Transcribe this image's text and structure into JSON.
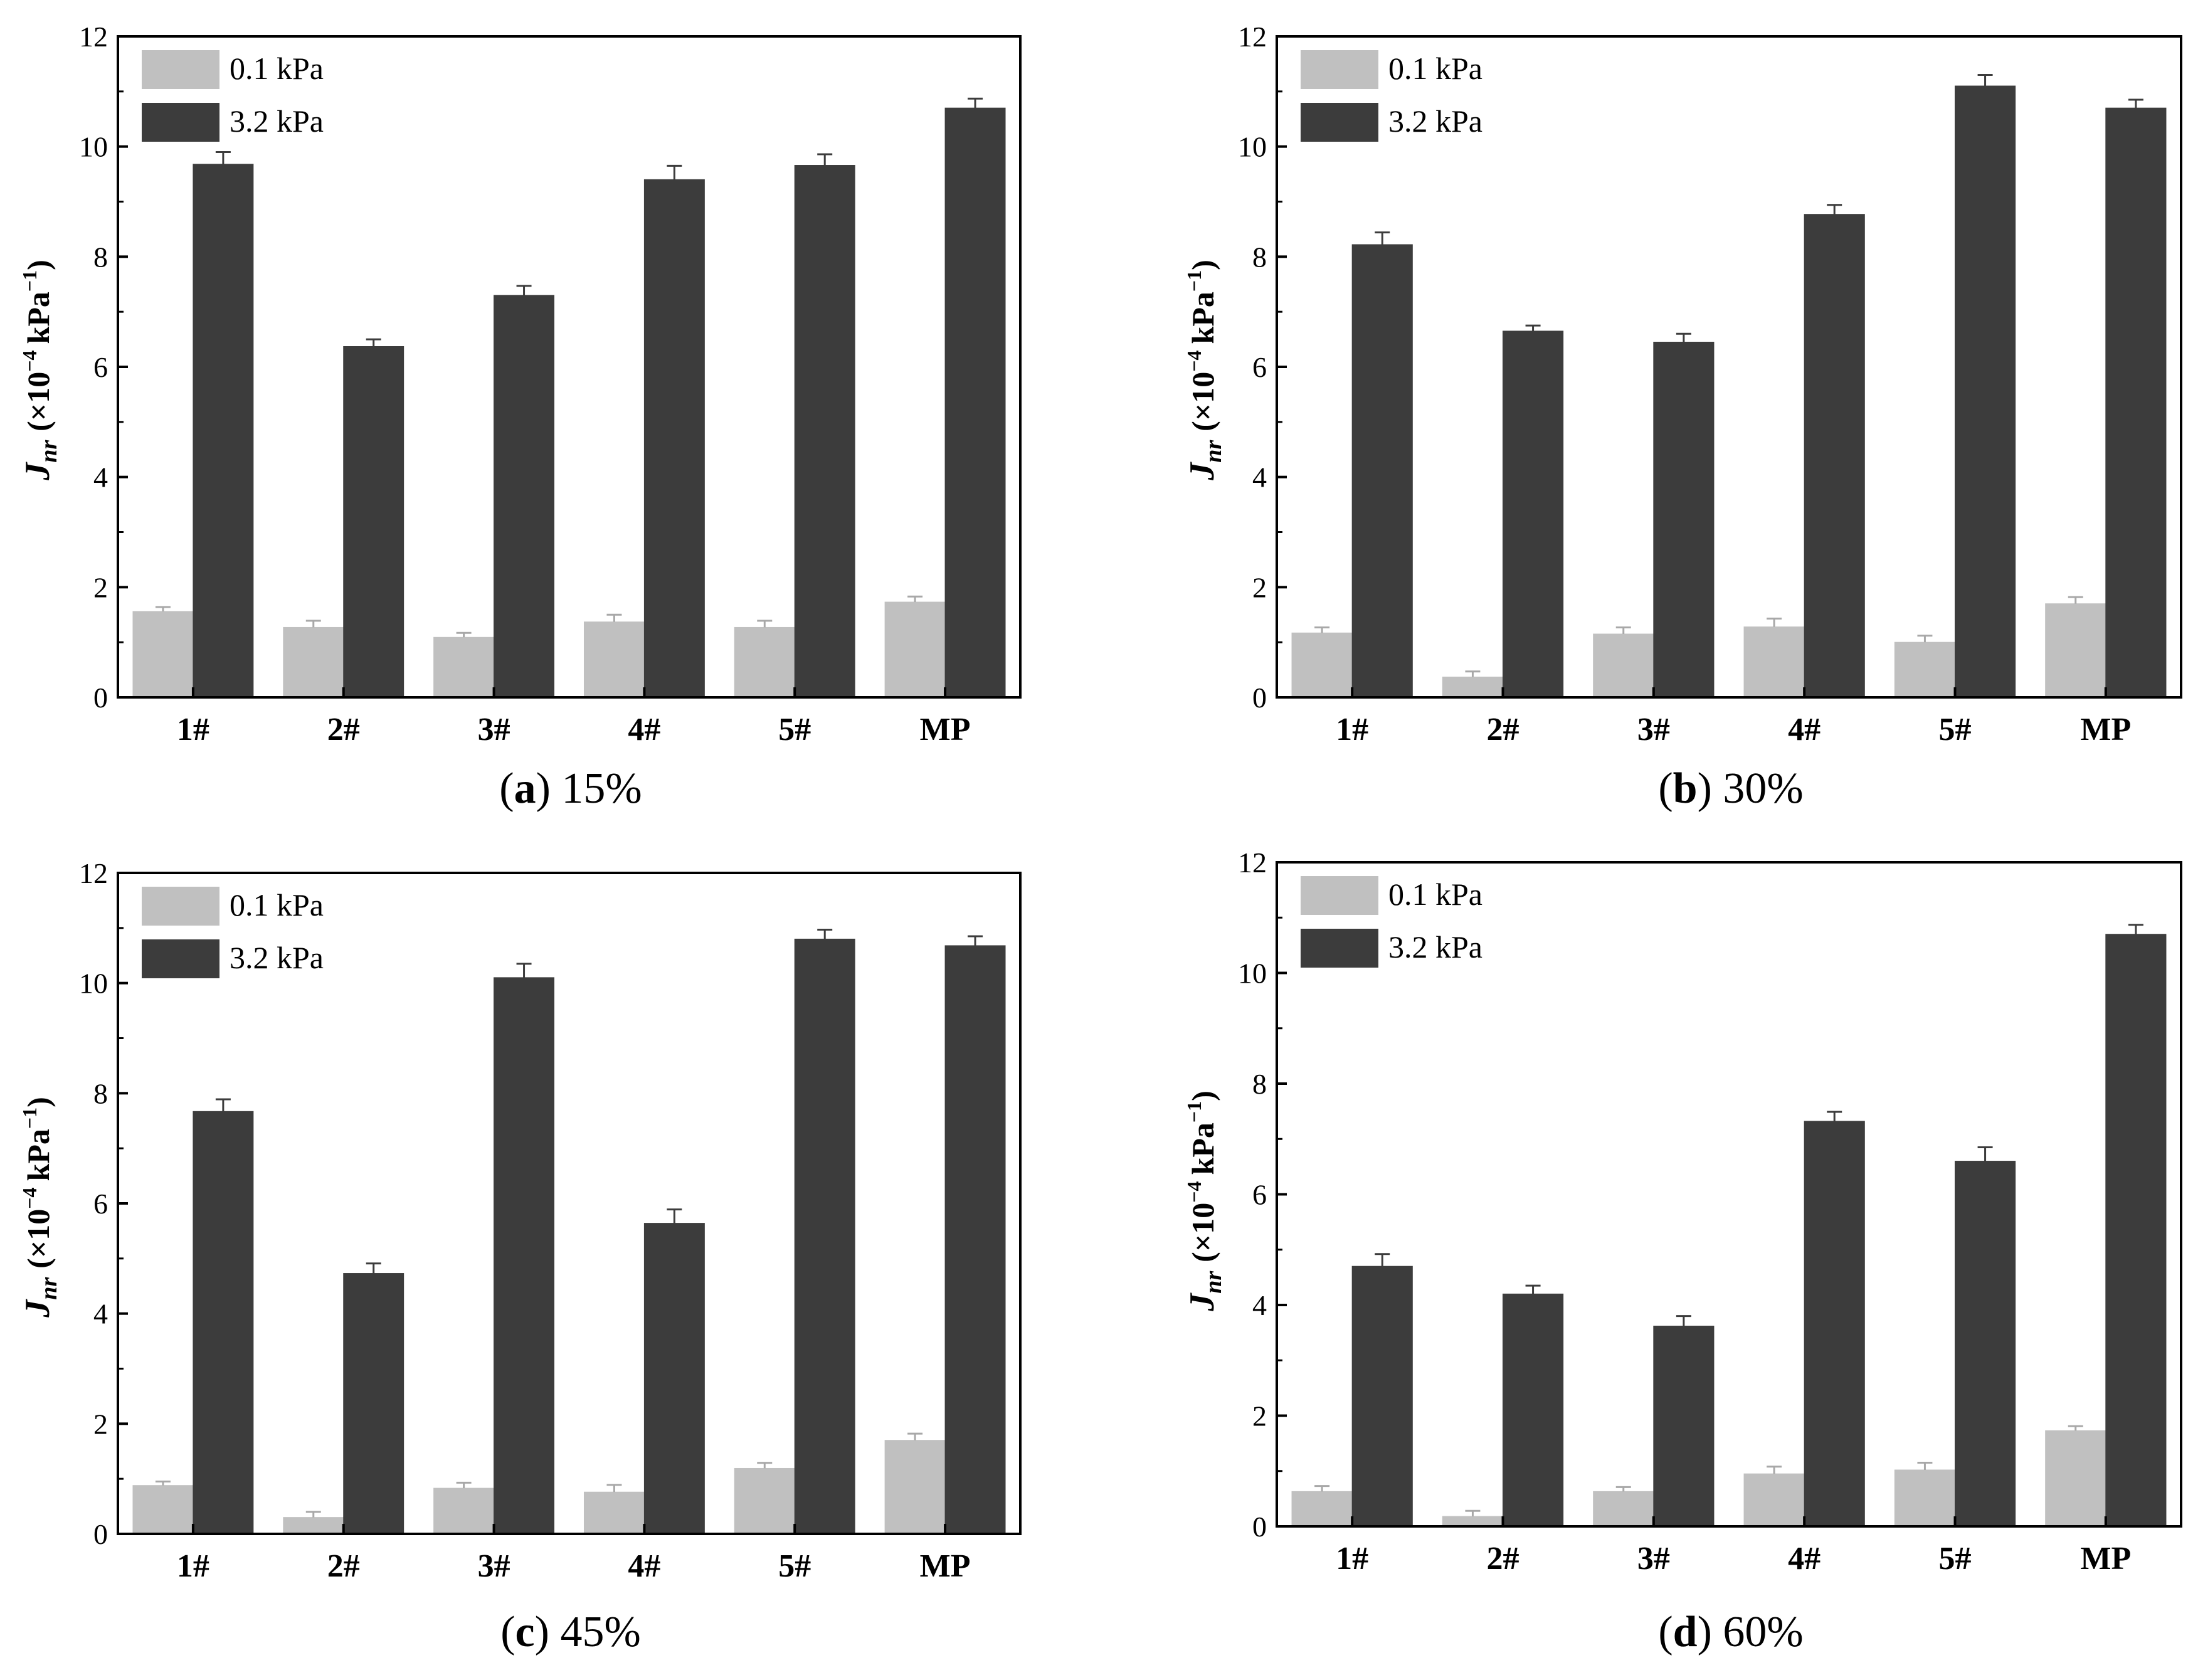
{
  "chart_data": [
    {
      "type": "bar",
      "panel_letter": "a",
      "panel_value": "15%",
      "ylabel_main": "J",
      "ylabel_sub": "nr",
      "ylabel_rest": "(×10",
      "ylabel_exp": "−4",
      "ylabel_unit": "kPa",
      "ylabel_unit_exp": "−1",
      "ylabel_close": ")",
      "ylim": [
        0,
        12
      ],
      "yticks": [
        "0",
        "2",
        "4",
        "6",
        "8",
        "10",
        "12"
      ],
      "categories": [
        "1#",
        "2#",
        "3#",
        "4#",
        "5#",
        "MP"
      ],
      "legend_position": "top-left",
      "series": [
        {
          "name": "0.1 kPa",
          "color": "#c0c0c0",
          "values": [
            1.56,
            1.27,
            1.09,
            1.37,
            1.27,
            1.73
          ],
          "errors": [
            0.08,
            0.12,
            0.08,
            0.13,
            0.12,
            0.1
          ]
        },
        {
          "name": "3.2 kPa",
          "color": "#3c3c3c",
          "values": [
            9.68,
            6.37,
            7.3,
            9.4,
            9.66,
            10.7
          ],
          "errors": [
            0.22,
            0.13,
            0.17,
            0.25,
            0.2,
            0.17
          ]
        }
      ]
    },
    {
      "type": "bar",
      "panel_letter": "b",
      "panel_value": "30%",
      "ylabel_main": "J",
      "ylabel_sub": "nr",
      "ylabel_rest": "(×10",
      "ylabel_exp": "−4",
      "ylabel_unit": "kPa",
      "ylabel_unit_exp": "−1",
      "ylabel_close": ")",
      "ylim": [
        0,
        12
      ],
      "yticks": [
        "0",
        "2",
        "4",
        "6",
        "8",
        "10",
        "12"
      ],
      "categories": [
        "1#",
        "2#",
        "3#",
        "4#",
        "5#",
        "MP"
      ],
      "legend_position": "top-left",
      "series": [
        {
          "name": "0.1 kPa",
          "color": "#c0c0c0",
          "values": [
            1.17,
            0.37,
            1.15,
            1.28,
            1.0,
            1.7
          ],
          "errors": [
            0.1,
            0.1,
            0.12,
            0.15,
            0.12,
            0.12
          ]
        },
        {
          "name": "3.2 kPa",
          "color": "#3c3c3c",
          "values": [
            8.22,
            6.65,
            6.45,
            8.77,
            11.1,
            10.7
          ],
          "errors": [
            0.22,
            0.1,
            0.15,
            0.17,
            0.2,
            0.15
          ]
        }
      ]
    },
    {
      "type": "bar",
      "panel_letter": "c",
      "panel_value": "45%",
      "ylabel_main": "J",
      "ylabel_sub": "nr",
      "ylabel_rest": "(×10",
      "ylabel_exp": "−4",
      "ylabel_unit": "kPa",
      "ylabel_unit_exp": "−1",
      "ylabel_close": ")",
      "ylim": [
        0,
        12
      ],
      "yticks": [
        "0",
        "2",
        "4",
        "6",
        "8",
        "10",
        "12"
      ],
      "categories": [
        "1#",
        "2#",
        "3#",
        "4#",
        "5#",
        "MP"
      ],
      "legend_position": "top-left",
      "series": [
        {
          "name": "0.1 kPa",
          "color": "#c0c0c0",
          "values": [
            0.88,
            0.3,
            0.83,
            0.76,
            1.19,
            1.7
          ],
          "errors": [
            0.07,
            0.1,
            0.1,
            0.13,
            0.1,
            0.12
          ]
        },
        {
          "name": "3.2 kPa",
          "color": "#3c3c3c",
          "values": [
            7.67,
            4.73,
            10.1,
            5.64,
            10.8,
            10.68
          ],
          "errors": [
            0.22,
            0.18,
            0.25,
            0.25,
            0.17,
            0.17
          ]
        }
      ]
    },
    {
      "type": "bar",
      "panel_letter": "d",
      "panel_value": "60%",
      "ylabel_main": "J",
      "ylabel_sub": "nr",
      "ylabel_rest": "(×10",
      "ylabel_exp": "−4",
      "ylabel_unit": "kPa",
      "ylabel_unit_exp": "−1",
      "ylabel_close": ")",
      "ylim": [
        0,
        12
      ],
      "yticks": [
        "0",
        "2",
        "4",
        "6",
        "8",
        "10",
        "12"
      ],
      "categories": [
        "1#",
        "2#",
        "3#",
        "4#",
        "5#",
        "MP"
      ],
      "legend_position": "top-left",
      "series": [
        {
          "name": "0.1 kPa",
          "color": "#c0c0c0",
          "values": [
            0.63,
            0.18,
            0.63,
            0.95,
            1.02,
            1.73
          ],
          "errors": [
            0.1,
            0.1,
            0.08,
            0.13,
            0.13,
            0.08
          ]
        },
        {
          "name": "3.2 kPa",
          "color": "#3c3c3c",
          "values": [
            4.7,
            4.2,
            3.62,
            7.32,
            6.6,
            10.7
          ],
          "errors": [
            0.22,
            0.15,
            0.18,
            0.17,
            0.25,
            0.17
          ]
        }
      ]
    }
  ]
}
